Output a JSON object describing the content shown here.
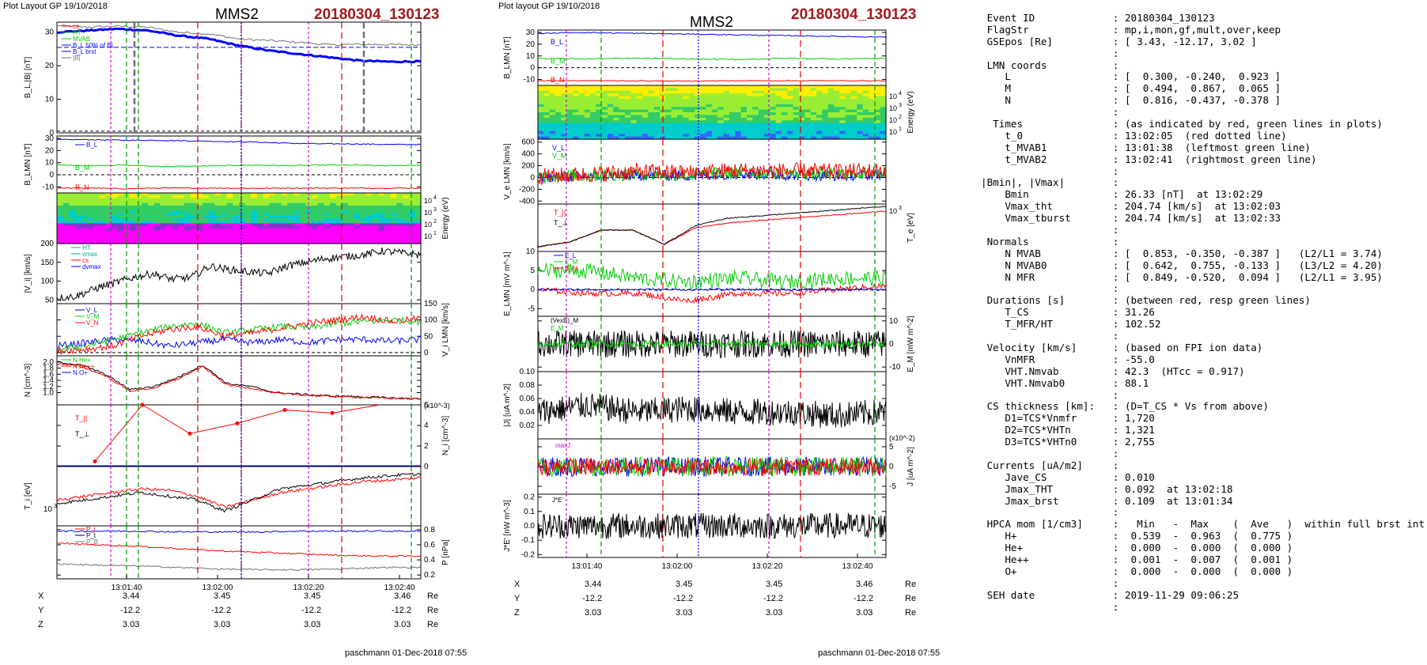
{
  "header": {
    "left_tag": "Plot Layout GP 19/10/2018",
    "mid_tag": "Plot layout GP 19/10/2018",
    "spacecraft": "MMS2",
    "event": "20180304_130123"
  },
  "footer": {
    "credit": "paschmann 01-Dec-2018 07:55"
  },
  "colors": {
    "event_red": "#a3191c",
    "series_red": "#ff0000",
    "series_green": "#00cc00",
    "series_blue": "#0000ff",
    "series_black": "#000000",
    "series_gray": "#707070",
    "magenta_marker": "#cc00cc",
    "green_marker": "#009900",
    "red_marker": "#dd0000"
  },
  "chart_data": [
    {
      "type": "line",
      "title": "MMS2 left column",
      "time_ticks": [
        "13:01:40",
        "13:02:00",
        "13:02:20",
        "13:02:40"
      ],
      "ephemeris": {
        "labels": [
          "X",
          "Y",
          "Z"
        ],
        "unit": "Re",
        "X": [
          "3.44",
          "3.45",
          "3.45",
          "3.46"
        ],
        "Y": [
          "-12.2",
          "-12.2",
          "-12.2",
          "-12.2"
        ],
        "Z": [
          "3.03",
          "3.03",
          "3.03",
          "3.03"
        ]
      },
      "panels": [
        {
          "ylabel": "B_L,|B| [nT]",
          "ylim": [
            0,
            33
          ],
          "ticks": [
            "0",
            "10",
            "20",
            "30"
          ],
          "legend": [
            "cs",
            "HT",
            "MVAB",
            "B_L 50% of BL",
            "B_L brst",
            "|B|"
          ],
          "series": [
            {
              "name": "|B|",
              "color": "#707070",
              "values": [
                32,
                31.5,
                31.8,
                31.5,
                30,
                29.5,
                28,
                27.5,
                27,
                26.2,
                26.4,
                26.3,
                26.2
              ]
            },
            {
              "name": "B_L brst",
              "color": "#0000ff",
              "values": [
                30,
                30.5,
                31,
                30.5,
                29,
                28,
                26,
                24.5,
                23.5,
                22.5,
                21.5,
                21.2,
                21.3
              ]
            }
          ]
        },
        {
          "ylabel": "B_LMN [nT]",
          "ylim": [
            -15,
            32
          ],
          "ticks": [
            "-10",
            "0",
            "10",
            "20",
            "30"
          ],
          "series": [
            {
              "name": "B_L",
              "color": "#0000ff",
              "values": [
                29,
                29,
                28.5,
                28.5,
                28,
                27.5,
                27,
                26,
                25.5,
                25.5,
                25,
                25
              ]
            },
            {
              "name": "B_M",
              "color": "#00cc00",
              "values": [
                8,
                7.5,
                8,
                7,
                7,
                7.5,
                8,
                7.5,
                8,
                8,
                7.5,
                8
              ]
            },
            {
              "name": "B_N",
              "color": "#ff0000",
              "values": [
                -11,
                -11,
                -11.5,
                -11,
                -11,
                -11,
                -11.2,
                -11,
                -11,
                -11,
                -11,
                -11
              ]
            }
          ]
        },
        {
          "ylabel": "Energy (eV)",
          "type_note": "spectrogram",
          "ticks": [
            "10^1",
            "10^2",
            "10^3",
            "10^4"
          ]
        },
        {
          "ylabel": "|V_i| [km/s]",
          "ylim": [
            40,
            200
          ],
          "ticks": [
            "50",
            "100",
            "150",
            "200"
          ],
          "legend": [
            "HT",
            "vmax",
            "cs",
            "dvmax"
          ],
          "series": [
            {
              "name": "|V_i|",
              "color": "#000000",
              "values": [
                55,
                60,
                80,
                95,
                110,
                120,
                105,
                110,
                140,
                130,
                125,
                120,
                140,
                150,
                160,
                165,
                170,
                180,
                175,
                170
              ]
            }
          ]
        },
        {
          "ylabel": "V_i LMN [km/s]",
          "ylim": [
            -10,
            150
          ],
          "ticks": [
            "0",
            "50",
            "100",
            "150"
          ],
          "series": [
            {
              "name": "V_L",
              "color": "#0000ff",
              "values": [
                20,
                30,
                40,
                35,
                20,
                30,
                40,
                30,
                40,
                30,
                40,
                40,
                35,
                40
              ]
            },
            {
              "name": "V_M",
              "color": "#00cc00",
              "values": [
                10,
                20,
                40,
                60,
                80,
                90,
                60,
                70,
                80,
                75,
                90,
                95,
                100,
                95
              ]
            },
            {
              "name": "V_N",
              "color": "#ff0000",
              "values": [
                5,
                10,
                20,
                50,
                70,
                80,
                50,
                60,
                75,
                90,
                100,
                110,
                95,
                105
              ]
            }
          ]
        },
        {
          "ylabel": "N [cm^-3]",
          "ylim": [
            0.6,
            2.2
          ],
          "ticks": [
            "1.0",
            "1.2",
            "1.4",
            "1.6",
            "1.8",
            "2.0"
          ],
          "series": [
            {
              "name": "N_i",
              "color": "#000000",
              "values": [
                2.0,
                1.9,
                1.6,
                1.1,
                1.2,
                1.5,
                1.9,
                1.3,
                1.2,
                1.0,
                0.95,
                0.9,
                0.88,
                0.85,
                0.82,
                0.8
              ]
            },
            {
              "name": "N_e",
              "color": "#ff0000",
              "values": [
                1.95,
                1.85,
                1.55,
                1.05,
                1.15,
                1.45,
                1.85,
                1.25,
                1.15,
                0.98,
                0.93,
                0.88,
                0.86,
                0.83,
                0.81,
                0.79
              ]
            }
          ]
        },
        {
          "ylabel": "N_i [cm^-3]",
          "unit_note": "(x10^-3)",
          "ylim": [
            0,
            6
          ],
          "ticks": [
            "0",
            "2",
            "4",
            "6"
          ],
          "legend": [
            "N He+",
            "N He++",
            "N O+"
          ],
          "series": [
            {
              "name": "N He++",
              "color": "#ff0000",
              "values": [
                0.5,
                6,
                3.2,
                4.2,
                5.5,
                5.2,
                6.5
              ]
            },
            {
              "name": "N He+",
              "color": "#00cc00",
              "values": [
                0,
                0,
                0,
                0,
                0,
                0,
                0
              ]
            },
            {
              "name": "N O+",
              "color": "#0000ff",
              "values": [
                0,
                0,
                0,
                0,
                0,
                0,
                0
              ]
            }
          ]
        },
        {
          "ylabel": "T_i [eV]",
          "ticks": [
            "10^3"
          ],
          "series": [
            {
              "name": "T_par",
              "color": "#ff0000",
              "values": [
                0.55,
                0.6,
                0.65,
                0.7,
                0.68,
                0.6,
                0.45,
                0.55,
                0.65,
                0.7,
                0.75,
                0.8,
                0.82,
                0.85
              ]
            },
            {
              "name": "T_perp",
              "color": "#000000",
              "values": [
                0.5,
                0.55,
                0.6,
                0.65,
                0.6,
                0.55,
                0.4,
                0.55,
                0.7,
                0.75,
                0.8,
                0.85,
                0.88,
                0.9
              ]
            }
          ]
        },
        {
          "ylabel": "P [nPa]",
          "ylim": [
            0.15,
            0.85
          ],
          "ticks": [
            "0.2",
            "0.4",
            "0.6",
            "0.8"
          ],
          "series": [
            {
              "name": "P_i",
              "color": "#ff0000",
              "values": [
                0.62,
                0.6,
                0.58,
                0.55,
                0.52,
                0.5,
                0.48,
                0.46,
                0.45,
                0.45
              ]
            },
            {
              "name": "P_t",
              "color": "#0000ff",
              "values": [
                0.78,
                0.78,
                0.78,
                0.77,
                0.77,
                0.77,
                0.78,
                0.78,
                0.78,
                0.78
              ]
            },
            {
              "name": "P_B",
              "color": "#000000",
              "values": [
                0.35,
                0.33,
                0.32,
                0.3,
                0.28,
                0.27,
                0.27,
                0.28,
                0.3,
                0.3
              ]
            }
          ]
        }
      ]
    },
    {
      "type": "line",
      "title": "MMS2 right column",
      "time_ticks": [
        "13:01:40",
        "13:02:00",
        "13:02:20",
        "13:02:40"
      ],
      "ephemeris": {
        "labels": [
          "X",
          "Y",
          "Z"
        ],
        "unit": "Re",
        "X": [
          "3.44",
          "3.45",
          "3.45",
          "3.46"
        ],
        "Y": [
          "-12.2",
          "-12.2",
          "-12.2",
          "-12.2"
        ],
        "Z": [
          "3.03",
          "3.03",
          "3.03",
          "3.03"
        ]
      },
      "panels": [
        {
          "ylabel": "B_LMN [nT]",
          "ylim": [
            -15,
            32
          ],
          "ticks": [
            "-10",
            "0",
            "10",
            "20",
            "30"
          ]
        },
        {
          "ylabel": "Energy (eV)",
          "type_note": "spectrogram",
          "ticks": [
            "10^1",
            "10^2",
            "10^3",
            "10^4"
          ]
        },
        {
          "ylabel": "V_e LMN [km/s]",
          "ylim": [
            -450,
            650
          ],
          "ticks": [
            "-400",
            "-200",
            "0",
            "200",
            "400",
            "600"
          ]
        },
        {
          "ylabel": "T_e [eV]",
          "ticks": [
            "10^3"
          ]
        },
        {
          "ylabel": "E_LMN [mV m^-1]",
          "ylim": [
            -7,
            10
          ],
          "ticks": [
            "-5",
            "0",
            "5",
            "10"
          ]
        },
        {
          "ylabel": "E_M [mW m^-2]",
          "ylim": [
            -12,
            12
          ],
          "ticks": [
            "-10",
            "0",
            "10"
          ],
          "legend": [
            "(VexB)_M",
            "E_M"
          ]
        },
        {
          "ylabel": "|J| [uA m^-2]",
          "ylim": [
            0,
            0.1
          ],
          "ticks": [
            "0.02",
            "0.04",
            "0.06",
            "0.08",
            "0.10"
          ]
        },
        {
          "ylabel": "J [uA m^-2]",
          "unit_note": "(x10^-2)",
          "ylim": [
            -7,
            7
          ],
          "ticks": [
            "-5",
            "0",
            "5"
          ],
          "legend": [
            "maxJ"
          ]
        },
        {
          "ylabel": "J*E' [nW m^-3]",
          "ylim": [
            -0.22,
            0.22
          ],
          "ticks": [
            "-0.2",
            "-0.1",
            "0.0",
            "0.1",
            "0.2"
          ],
          "legend": [
            "J*E'"
          ]
        }
      ]
    }
  ],
  "labels": {
    "left_ylabels": [
      "B_L,|B| [nT]",
      "B_LMN [nT]",
      "|V_i| [km/s]",
      "N [cm^-3]",
      "T_i [eV]"
    ],
    "left_rlabels": [
      "Energy (eV)",
      "V_i LMN [km/s]",
      "N_i [cm^-3]",
      "P [nPa]"
    ],
    "right_ylabels": [
      "B_LMN [nT]",
      "V_e LMN [km/s]",
      "E_LMN [mV m^-1]",
      "|J| [uA m^-2]",
      "J*E' [nW m^-3]"
    ],
    "right_rlabels": [
      "Energy (eV)",
      "T_e [eV]",
      "E_M [mW m^-2]",
      "J [uA m^-2]"
    ],
    "unit_x1e3": "(x10^-3)",
    "unit_x1e2": "(x10^-2)",
    "legend_B": [
      "cs",
      "HT",
      "MVAB",
      "B_L 50% of BL",
      "B_L brst",
      "|B|"
    ],
    "legend_BLMN": [
      "B_L",
      "B_M",
      "B_N"
    ],
    "legend_V": [
      "HT",
      "vmax",
      "cs",
      "dvmax"
    ],
    "legend_Vlmn": [
      "V_L",
      "V_M",
      "V_N"
    ],
    "legend_Nhe": [
      "N He+",
      "N He++",
      "N O+"
    ],
    "legend_Ti": [
      "T_||",
      "T_⊥"
    ],
    "legend_P": [
      "P_i",
      "P_t",
      "P_B"
    ],
    "legend_Ve": [
      "V_L",
      "V_M"
    ],
    "legend_Te": [
      "T_||",
      "T_⊥"
    ],
    "legend_E": [
      "E_L",
      "E_M",
      "E_N"
    ],
    "legend_EM": [
      "(VexB)_M",
      "E_M"
    ],
    "legend_J": [
      "maxJ"
    ],
    "legend_JE": [
      "J*E'"
    ]
  },
  "summary": {
    "lines": [
      " Event ID             : 20180304_130123",
      " FlagStr              : mp,i,mon,gf,mult,over,keep",
      " GSEpos [Re]          : [ 3.43, -12.17, 3.02 ]",
      "                      :",
      " LMN coords           :",
      "    L                 : [  0.300, -0.240,  0.923 ]",
      "    M                 : [  0.494,  0.867,  0.065 ]",
      "    N                 : [  0.816, -0.437, -0.378 ]",
      "                      :",
      "  Times               : (as indicated by red, green lines in plots)",
      "    t_0               : 13:02:05  (red dotted line)",
      "    t_MVAB1           : 13:01:38  (leftmost green line)",
      "    t_MVAB2           : 13:02:41  (rightmost green line)",
      "                      :",
      "|Bmin|, |Vmax|        :",
      "    Bmin              : 26.33 [nT]  at 13:02:29",
      "    Vmax_tht          : 204.74 [km/s]  at 13:02:03",
      "    Vmax_tburst       : 204.74 [km/s]  at 13:02:33",
      "                      :",
      " Normals              :",
      "    N MVAB            : [  0.853, -0.350, -0.387 ]   (L2/L1 = 3.74)",
      "    N MVAB0           : [  0.642,  0.755, -0.133 ]   (L3/L2 = 4.20)",
      "    N MFR             : [  0.849, -0.520,  0.094 ]   (L2/L1 = 3.95)",
      "                      :",
      " Durations [s]        : (between red, resp green lines)",
      "    T_CS              : 31.26",
      "    T_MFR/HT          : 102.52",
      "                      :",
      " Velocity [km/s]      : (based on FPI ion data)",
      "    VnMFR             : -55.0",
      "    VHT.Nmvab         : 42.3  (HTcc = 0.917)",
      "    VHT.Nmvab0        : 88.1",
      "                      :",
      " CS thickness [km]:   : (D=T_CS * Vs from above)",
      "    D1=TCS*Vnmfr      : 1,720",
      "    D2=TCS*VHTn       : 1,321",
      "    D3=TCS*VHTn0      : 2,755",
      "                      :",
      " Currents [uA/m2]     :",
      "    Jave_CS           : 0.010",
      "    Jmax_THT          : 0.092  at 13:02:18",
      "    Jmax_brst         : 0.109  at 13:01:34",
      "                      :",
      " HPCA mom [1/cm3]     :   Min   -  Max    (  Ave   )  within full brst int",
      "    H+                :  0.539  -  0.963  (  0.775 )",
      "    He+               :  0.000  -  0.000  (  0.000 )",
      "    He++              :  0.001  -  0.007  (  0.001 )",
      "    O+                :  0.000  -  0.000  (  0.000 )",
      "                      :",
      " SEH date             : 2019-11-29 09:06:25",
      "                      :"
    ]
  }
}
